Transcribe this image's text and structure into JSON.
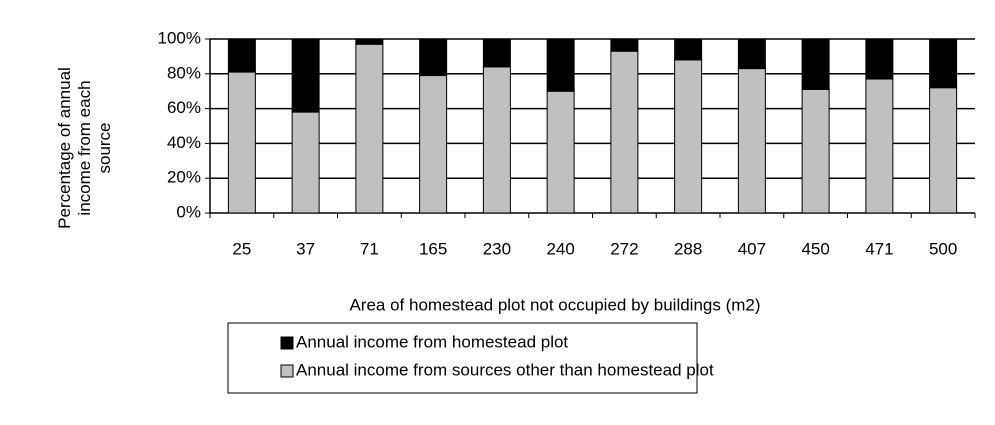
{
  "chart_data": {
    "type": "stacked_bar",
    "x_label": "Area of homestead plot not occupied by buildings (m2)",
    "y_label": "Percentage of annual income from each source",
    "categories": [
      "25",
      "37",
      "71",
      "165",
      "230",
      "240",
      "272",
      "288",
      "407",
      "450",
      "471",
      "500"
    ],
    "series": [
      {
        "name": "Annual income from homestead plot",
        "color": "#000000",
        "values": [
          19,
          42,
          3,
          21,
          16,
          30,
          7,
          12,
          17,
          29,
          23,
          28
        ]
      },
      {
        "name": "Annual income from sources other than homestead plot",
        "color": "#c0c0c0",
        "values": [
          81,
          58,
          97,
          79,
          84,
          70,
          93,
          88,
          83,
          71,
          77,
          72
        ]
      }
    ],
    "ylim": [
      0,
      100
    ],
    "yticks": [
      {
        "value": 0,
        "label": "0%"
      },
      {
        "value": 20,
        "label": "20%"
      },
      {
        "value": 40,
        "label": "40%"
      },
      {
        "value": 60,
        "label": "60%"
      },
      {
        "value": 80,
        "label": "80%"
      },
      {
        "value": 100,
        "label": "100%"
      }
    ],
    "grid": true
  }
}
